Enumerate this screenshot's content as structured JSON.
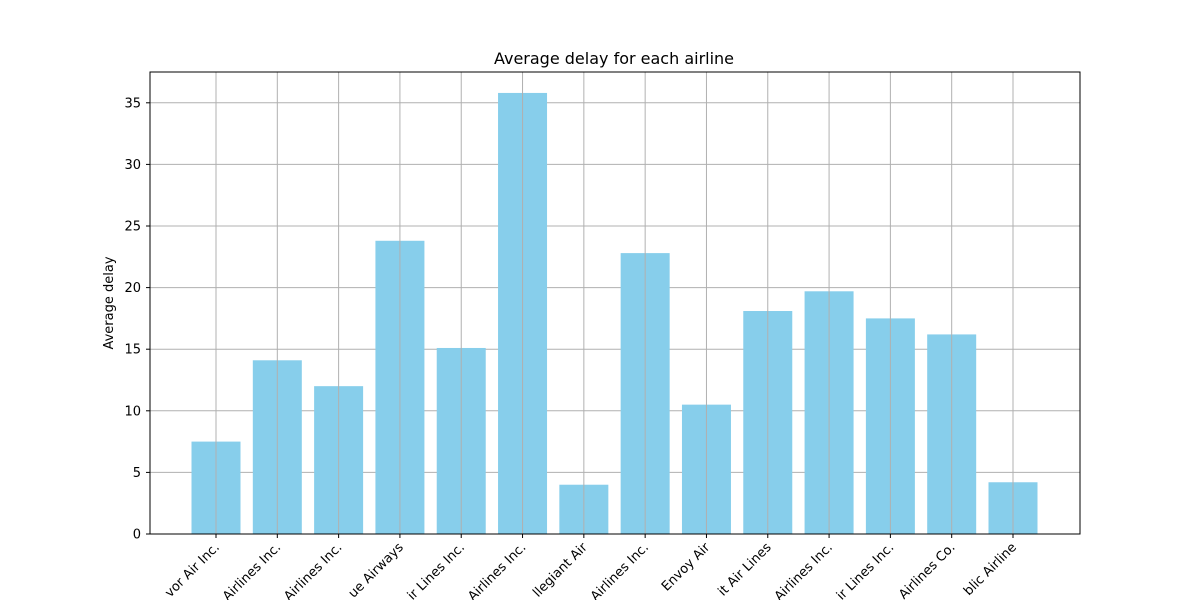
{
  "chart_data": {
    "type": "bar",
    "title": "Average delay for each airline",
    "xlabel": "",
    "ylabel": "Average delay",
    "categories": [
      "vor Air Inc.",
      "Airlines Inc.",
      "Airlines Inc.",
      "ue Airways",
      "ir Lines Inc.",
      "Airlines Inc.",
      "llegiant Air",
      "Airlines Inc.",
      "Envoy Air",
      "it Air Lines",
      "Airlines Inc.",
      "ir Lines Inc.",
      "Airlines Co.",
      "blic Airline"
    ],
    "values": [
      7.5,
      14.1,
      12.0,
      23.8,
      15.1,
      35.8,
      4.0,
      22.8,
      10.5,
      18.1,
      19.7,
      17.5,
      16.2,
      4.2
    ],
    "ylim": [
      0,
      37.5
    ],
    "yticks": [
      0,
      5,
      10,
      15,
      20,
      25,
      30,
      35
    ],
    "grid": true,
    "bar_color": "#87CEEB",
    "grid_color": "#b0b0b0"
  }
}
